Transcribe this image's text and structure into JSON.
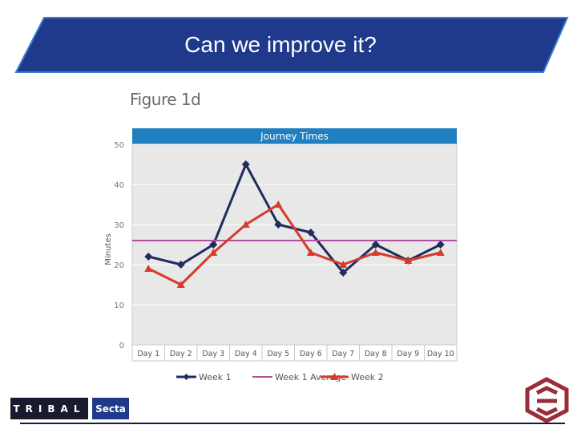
{
  "slide": {
    "title": "Can we improve it?",
    "figure_label": "Figure 1d",
    "logo_left": "TRIBAL",
    "logo_right": "Secta"
  },
  "colors": {
    "banner": "#1f3a8a",
    "banner_edge": "#3a7bd5",
    "week1": "#1f2d5c",
    "week2": "#d63a2a",
    "average": "#b04fa0",
    "chart_header": "#1f7fc0",
    "plot_bg": "#e8e8e8",
    "emblem": "#9b2d3a"
  },
  "chart_data": {
    "type": "line",
    "title": "Journey Times",
    "ylabel": "Minutes",
    "xlabel": "",
    "ylim": [
      0,
      50
    ],
    "yticks": [
      0,
      10,
      20,
      30,
      40,
      50
    ],
    "categories": [
      "Day 1",
      "Day 2",
      "Day 3",
      "Day 4",
      "Day 5",
      "Day 6",
      "Day 7",
      "Day 8",
      "Day 9",
      "Day 10"
    ],
    "series": [
      {
        "name": "Week 1",
        "marker": "diamond",
        "values": [
          22,
          20,
          25,
          45,
          30,
          28,
          18,
          25,
          21,
          25
        ]
      },
      {
        "name": "Week 1 Average",
        "marker": "none",
        "values": [
          26,
          26,
          26,
          26,
          26,
          26,
          26,
          26,
          26,
          26
        ]
      },
      {
        "name": "Week 2",
        "marker": "triangle",
        "values": [
          19,
          15,
          23,
          30,
          35,
          23,
          20,
          23,
          21,
          23
        ]
      }
    ],
    "grid": true,
    "legend": "bottom"
  }
}
